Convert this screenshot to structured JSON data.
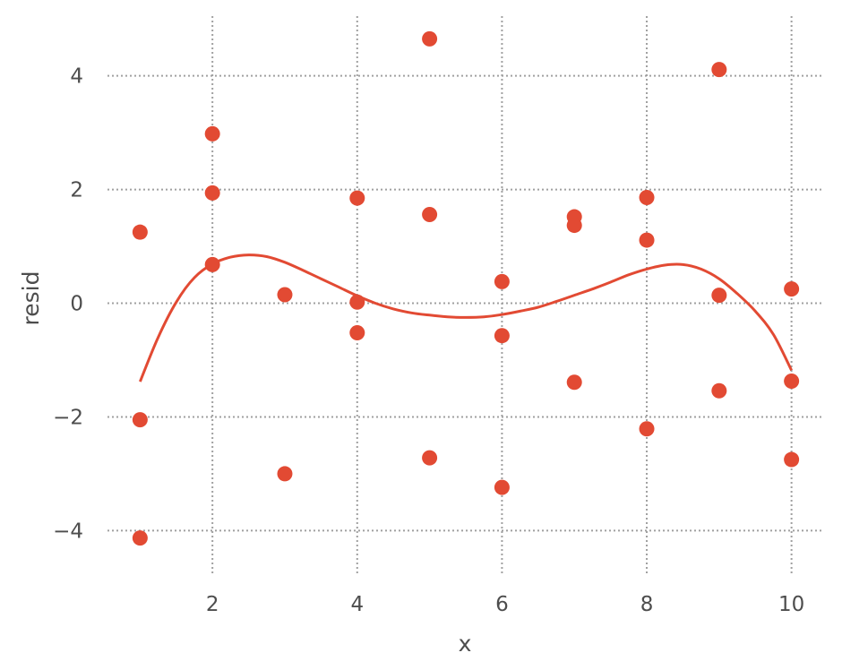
{
  "chart_data": {
    "type": "scatter",
    "title": "",
    "xlabel": "x",
    "ylabel": "resid",
    "xlim": [
      0.55,
      10.45
    ],
    "ylim": [
      -4.75,
      5.05
    ],
    "x_ticks": [
      2,
      4,
      6,
      8,
      10
    ],
    "x_tick_labels": [
      "2",
      "4",
      "6",
      "8",
      "10"
    ],
    "y_ticks": [
      -4,
      -2,
      0,
      2,
      4
    ],
    "y_tick_labels": [
      "−4",
      "−2",
      "0",
      "2",
      "4"
    ],
    "grid": true,
    "colors": {
      "points": "#E24A33",
      "line": "#E24A33",
      "grid": "#a0a0a0",
      "text": "#4d4d4d"
    },
    "series": [
      {
        "type": "scatter",
        "points": [
          [
            1,
            1.25
          ],
          [
            1,
            -2.05
          ],
          [
            1,
            -4.13
          ],
          [
            2,
            2.98
          ],
          [
            2,
            1.94
          ],
          [
            2,
            0.68
          ],
          [
            3,
            0.15
          ],
          [
            3,
            -3.0
          ],
          [
            4,
            1.85
          ],
          [
            4,
            0.02
          ],
          [
            4,
            -0.52
          ],
          [
            5,
            4.65
          ],
          [
            5,
            1.56
          ],
          [
            5,
            -2.72
          ],
          [
            6,
            0.38
          ],
          [
            6,
            -0.57
          ],
          [
            6,
            -3.24
          ],
          [
            7,
            1.52
          ],
          [
            7,
            1.37
          ],
          [
            7,
            -1.39
          ],
          [
            8,
            1.86
          ],
          [
            8,
            1.11
          ],
          [
            8,
            -2.21
          ],
          [
            9,
            4.11
          ],
          [
            9,
            0.14
          ],
          [
            9,
            -1.54
          ],
          [
            10,
            0.25
          ],
          [
            10,
            -1.37
          ],
          [
            10,
            -2.75
          ]
        ]
      },
      {
        "type": "line",
        "points": [
          [
            1.0,
            -1.38
          ],
          [
            1.25,
            -0.6
          ],
          [
            1.5,
            0.02
          ],
          [
            1.75,
            0.45
          ],
          [
            2.0,
            0.69
          ],
          [
            2.25,
            0.81
          ],
          [
            2.5,
            0.85
          ],
          [
            2.75,
            0.82
          ],
          [
            3.0,
            0.72
          ],
          [
            3.25,
            0.58
          ],
          [
            3.5,
            0.43
          ],
          [
            3.75,
            0.28
          ],
          [
            4.0,
            0.13
          ],
          [
            4.25,
            0.0
          ],
          [
            4.5,
            -0.1
          ],
          [
            4.75,
            -0.17
          ],
          [
            5.0,
            -0.21
          ],
          [
            5.25,
            -0.24
          ],
          [
            5.5,
            -0.25
          ],
          [
            5.75,
            -0.24
          ],
          [
            6.0,
            -0.2
          ],
          [
            6.25,
            -0.14
          ],
          [
            6.5,
            -0.07
          ],
          [
            6.75,
            0.03
          ],
          [
            7.0,
            0.14
          ],
          [
            7.25,
            0.25
          ],
          [
            7.5,
            0.37
          ],
          [
            7.75,
            0.5
          ],
          [
            8.0,
            0.6
          ],
          [
            8.25,
            0.67
          ],
          [
            8.5,
            0.68
          ],
          [
            8.75,
            0.6
          ],
          [
            9.0,
            0.43
          ],
          [
            9.25,
            0.17
          ],
          [
            9.5,
            -0.14
          ],
          [
            9.75,
            -0.55
          ],
          [
            10.0,
            -1.18
          ]
        ]
      }
    ]
  }
}
